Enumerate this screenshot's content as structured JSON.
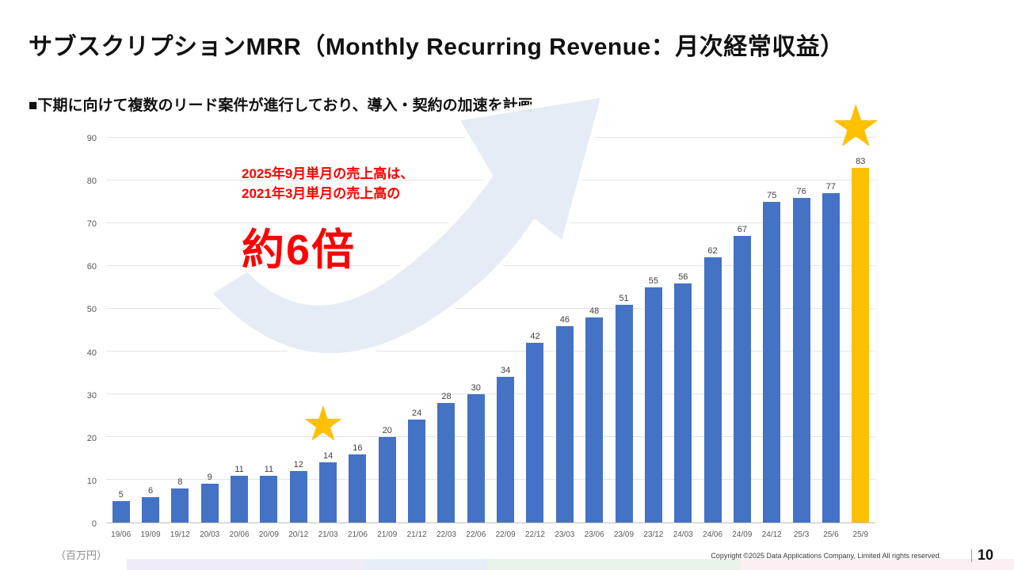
{
  "slide": {
    "title": "サブスクリプションMRR（Monthly Recurring Revenue：月次経常収益）",
    "lead": "■下期に向けて複数のリード案件が進行しており、導入・契約の加速を計画",
    "copyright": "Copyright ©2025  Data Applications Company, Limited All rights reserved.",
    "page_number": "10"
  },
  "annotation": {
    "line1": "2025年9月単月の売上高は、",
    "line2": "2021年3月単月の売上高の",
    "highlight": "約6倍",
    "color": "#FF0000"
  },
  "decorations": {
    "star_icon": "★",
    "star_color": "#FFC000",
    "arrow_fill": "#E4EBF5"
  },
  "chart_data": {
    "type": "bar",
    "title": "",
    "xlabel": "",
    "ylabel": "（百万円）",
    "ylim": [
      0,
      90
    ],
    "yticks": [
      0,
      10,
      20,
      30,
      40,
      50,
      60,
      70,
      80,
      90
    ],
    "grid": true,
    "legend": "none",
    "categories": [
      "19/06",
      "19/09",
      "19/12",
      "20/03",
      "20/06",
      "20/09",
      "20/12",
      "21/03",
      "21/06",
      "21/09",
      "21/12",
      "22/03",
      "22/06",
      "22/09",
      "22/12",
      "23/03",
      "23/06",
      "23/09",
      "23/12",
      "24/03",
      "24/06",
      "24/09",
      "24/12",
      "25/3",
      "25/6",
      "25/9"
    ],
    "values": [
      5,
      6,
      8,
      9,
      11,
      11,
      12,
      14,
      16,
      20,
      24,
      28,
      30,
      34,
      42,
      46,
      48,
      51,
      55,
      56,
      62,
      67,
      75,
      76,
      77,
      83
    ],
    "bar_color": "#4472C4",
    "highlight_index": 25,
    "highlight_color": "#FFC000"
  }
}
